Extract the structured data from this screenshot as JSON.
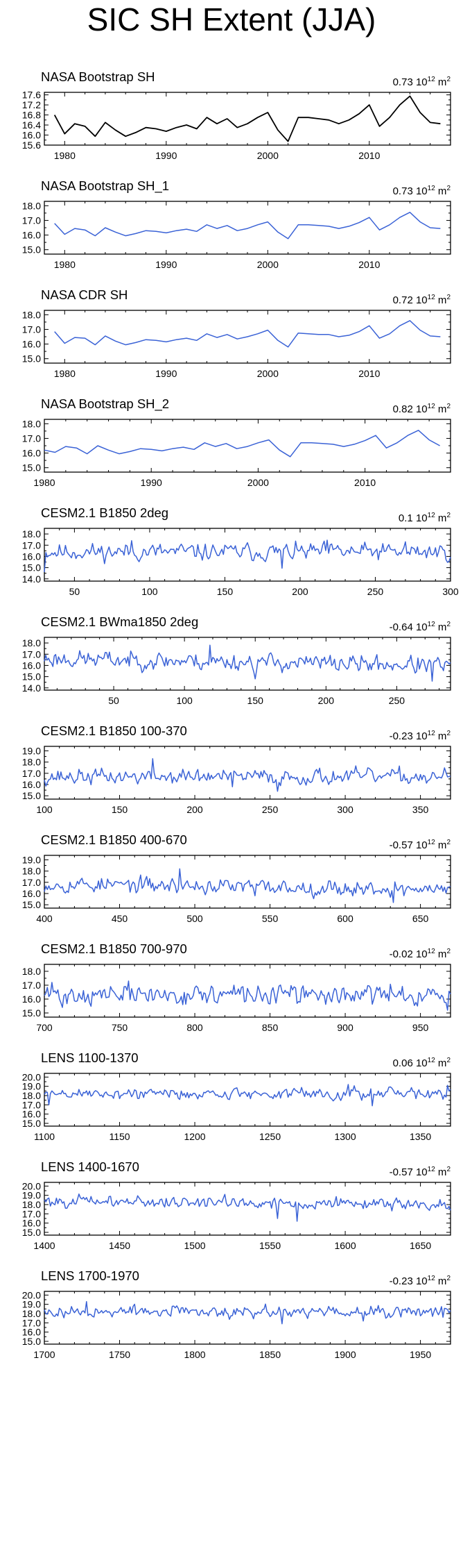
{
  "title": "SIC SH Extent (JJA)",
  "colors": {
    "black_series": "#000000",
    "blue_series": "#3a62d6"
  },
  "chart_data": [
    {
      "type": "line",
      "name": "NASA Bootstrap SH",
      "trend_label": "0.73 10",
      "trend_sup": "12",
      "trend_unit": " m",
      "trend_unit_sup": "2",
      "color": "#000000",
      "xlim": [
        1978,
        2018
      ],
      "ylim": [
        15.6,
        17.7
      ],
      "yticks": [
        15.6,
        16.0,
        16.4,
        16.8,
        17.2,
        17.6
      ],
      "ytick_labels": [
        "15.6",
        "16.0",
        "16.4",
        "16.8",
        "17.2",
        "17.6"
      ],
      "xticks": [
        1980,
        1990,
        2000,
        2010
      ],
      "xtick_labels": [
        "1980",
        "1990",
        "2000",
        "2010"
      ],
      "x": [
        1979,
        1980,
        1981,
        1982,
        1983,
        1984,
        1985,
        1986,
        1987,
        1988,
        1989,
        1990,
        1991,
        1992,
        1993,
        1994,
        1995,
        1996,
        1997,
        1998,
        1999,
        2000,
        2001,
        2002,
        2003,
        2004,
        2005,
        2006,
        2007,
        2008,
        2009,
        2010,
        2011,
        2012,
        2013,
        2014,
        2015,
        2016,
        2017
      ],
      "values": [
        16.8,
        16.05,
        16.45,
        16.35,
        15.95,
        16.5,
        16.2,
        15.95,
        16.1,
        16.3,
        16.25,
        16.15,
        16.3,
        16.4,
        16.25,
        16.7,
        16.45,
        16.65,
        16.3,
        16.45,
        16.7,
        16.9,
        16.2,
        15.75,
        16.7,
        16.7,
        16.65,
        16.6,
        16.45,
        16.6,
        16.85,
        17.2,
        16.35,
        16.7,
        17.2,
        17.55,
        16.9,
        16.5,
        16.45
      ]
    },
    {
      "type": "line",
      "name": "NASA Bootstrap SH_1",
      "trend_label": "0.73 10",
      "trend_sup": "12",
      "trend_unit": " m",
      "trend_unit_sup": "2",
      "color": "#3a62d6",
      "xlim": [
        1978,
        2018
      ],
      "ylim": [
        14.7,
        18.3
      ],
      "yticks": [
        15.0,
        16.0,
        17.0,
        18.0
      ],
      "ytick_labels": [
        "15.0",
        "16.0",
        "17.0",
        "18.0"
      ],
      "xticks": [
        1980,
        1990,
        2000,
        2010
      ],
      "xtick_labels": [
        "1980",
        "1990",
        "2000",
        "2010"
      ],
      "x": [
        1979,
        1980,
        1981,
        1982,
        1983,
        1984,
        1985,
        1986,
        1987,
        1988,
        1989,
        1990,
        1991,
        1992,
        1993,
        1994,
        1995,
        1996,
        1997,
        1998,
        1999,
        2000,
        2001,
        2002,
        2003,
        2004,
        2005,
        2006,
        2007,
        2008,
        2009,
        2010,
        2011,
        2012,
        2013,
        2014,
        2015,
        2016,
        2017
      ],
      "values": [
        16.8,
        16.05,
        16.45,
        16.35,
        15.95,
        16.5,
        16.2,
        15.95,
        16.1,
        16.3,
        16.25,
        16.15,
        16.3,
        16.4,
        16.25,
        16.7,
        16.45,
        16.65,
        16.3,
        16.45,
        16.7,
        16.9,
        16.2,
        15.75,
        16.7,
        16.7,
        16.65,
        16.6,
        16.45,
        16.6,
        16.85,
        17.2,
        16.35,
        16.7,
        17.2,
        17.55,
        16.9,
        16.5,
        16.45
      ]
    },
    {
      "type": "line",
      "name": "NASA CDR SH",
      "trend_label": "0.72 10",
      "trend_sup": "12",
      "trend_unit": " m",
      "trend_unit_sup": "2",
      "color": "#3a62d6",
      "xlim": [
        1978,
        2018
      ],
      "ylim": [
        14.7,
        18.3
      ],
      "yticks": [
        15.0,
        16.0,
        17.0,
        18.0
      ],
      "ytick_labels": [
        "15.0",
        "16.0",
        "17.0",
        "18.0"
      ],
      "xticks": [
        1980,
        1990,
        2000,
        2010
      ],
      "xtick_labels": [
        "1980",
        "1990",
        "2000",
        "2010"
      ],
      "x": [
        1979,
        1980,
        1981,
        1982,
        1983,
        1984,
        1985,
        1986,
        1987,
        1988,
        1989,
        1990,
        1991,
        1992,
        1993,
        1994,
        1995,
        1996,
        1997,
        1998,
        1999,
        2000,
        2001,
        2002,
        2003,
        2004,
        2005,
        2006,
        2007,
        2008,
        2009,
        2010,
        2011,
        2012,
        2013,
        2014,
        2015,
        2016,
        2017
      ],
      "values": [
        16.85,
        16.05,
        16.45,
        16.4,
        15.95,
        16.55,
        16.2,
        15.95,
        16.1,
        16.3,
        16.25,
        16.15,
        16.3,
        16.4,
        16.25,
        16.7,
        16.45,
        16.65,
        16.35,
        16.5,
        16.7,
        16.95,
        16.25,
        15.8,
        16.75,
        16.7,
        16.65,
        16.65,
        16.5,
        16.6,
        16.85,
        17.25,
        16.4,
        16.7,
        17.25,
        17.6,
        16.95,
        16.55,
        16.5
      ]
    },
    {
      "type": "line",
      "name": "NASA Bootstrap SH_2",
      "trend_label": "0.82 10",
      "trend_sup": "12",
      "trend_unit": " m",
      "trend_unit_sup": "2",
      "color": "#3a62d6",
      "xlim": [
        1980,
        2018
      ],
      "ylim": [
        14.7,
        18.3
      ],
      "yticks": [
        15.0,
        16.0,
        17.0,
        18.0
      ],
      "ytick_labels": [
        "15.0",
        "16.0",
        "17.0",
        "18.0"
      ],
      "xticks": [
        1980,
        1990,
        2000,
        2010
      ],
      "xtick_labels": [
        "1980",
        "1990",
        "2000",
        "2010"
      ],
      "x": [
        1980,
        1981,
        1982,
        1983,
        1984,
        1985,
        1986,
        1987,
        1988,
        1989,
        1990,
        1991,
        1992,
        1993,
        1994,
        1995,
        1996,
        1997,
        1998,
        1999,
        2000,
        2001,
        2002,
        2003,
        2004,
        2005,
        2006,
        2007,
        2008,
        2009,
        2010,
        2011,
        2012,
        2013,
        2014,
        2015,
        2016,
        2017
      ],
      "values": [
        16.2,
        16.05,
        16.45,
        16.35,
        15.95,
        16.5,
        16.2,
        15.95,
        16.1,
        16.3,
        16.25,
        16.15,
        16.3,
        16.4,
        16.25,
        16.7,
        16.45,
        16.65,
        16.3,
        16.45,
        16.7,
        16.9,
        16.2,
        15.75,
        16.7,
        16.7,
        16.65,
        16.6,
        16.45,
        16.6,
        16.85,
        17.2,
        16.35,
        16.7,
        17.2,
        17.55,
        16.9,
        16.5
      ]
    },
    {
      "type": "line",
      "name": "CESM2.1 B1850 2deg",
      "trend_label": "0.1 10",
      "trend_sup": "12",
      "trend_unit": " m",
      "trend_unit_sup": "2",
      "color": "#3a62d6",
      "xlim": [
        30,
        300
      ],
      "ylim": [
        13.8,
        18.5
      ],
      "yticks": [
        14.0,
        15.0,
        16.0,
        17.0,
        18.0
      ],
      "ytick_labels": [
        "14.0",
        "15.0",
        "16.0",
        "17.0",
        "18.0"
      ],
      "xticks": [
        50,
        100,
        150,
        200,
        250,
        300
      ],
      "xtick_labels": [
        "50",
        "100",
        "150",
        "200",
        "250",
        "300"
      ],
      "synthetic": {
        "start": 30,
        "end": 300,
        "mean": 16.4,
        "amp": 0.55,
        "seed": 11,
        "anchors": [
          [
            30,
            14.6
          ],
          [
            88,
            17.4
          ],
          [
            188,
            14.95
          ],
          [
            218,
            17.45
          ],
          [
            270,
            17.3
          ]
        ]
      }
    },
    {
      "type": "line",
      "name": "CESM2.1 BWma1850 2deg",
      "trend_label": "-0.64 10",
      "trend_sup": "12",
      "trend_unit": " m",
      "trend_unit_sup": "2",
      "color": "#3a62d6",
      "xlim": [
        1,
        288
      ],
      "ylim": [
        13.8,
        18.5
      ],
      "yticks": [
        14.0,
        15.0,
        16.0,
        17.0,
        18.0
      ],
      "ytick_labels": [
        "14.0",
        "15.0",
        "16.0",
        "17.0",
        "18.0"
      ],
      "xticks": [
        50,
        100,
        150,
        200,
        250
      ],
      "xtick_labels": [
        "50",
        "100",
        "150",
        "200",
        "250"
      ],
      "synthetic": {
        "start": 1,
        "end": 288,
        "mean": 16.3,
        "amp": 0.55,
        "seed": 23,
        "trend": -0.6,
        "anchors": [
          [
            118,
            17.8
          ],
          [
            150,
            14.8
          ],
          [
            275,
            14.6
          ]
        ]
      }
    },
    {
      "type": "line",
      "name": "CESM2.1 B1850 100-370",
      "trend_label": "-0.23 10",
      "trend_sup": "12",
      "trend_unit": " m",
      "trend_unit_sup": "2",
      "color": "#3a62d6",
      "xlim": [
        100,
        370
      ],
      "ylim": [
        14.7,
        19.4
      ],
      "yticks": [
        15.0,
        16.0,
        17.0,
        18.0,
        19.0
      ],
      "ytick_labels": [
        "15.0",
        "16.0",
        "17.0",
        "18.0",
        "19.0"
      ],
      "xticks": [
        100,
        150,
        200,
        250,
        300,
        350
      ],
      "xtick_labels": [
        "100",
        "150",
        "200",
        "250",
        "300",
        "350"
      ],
      "synthetic": {
        "start": 100,
        "end": 370,
        "mean": 16.7,
        "amp": 0.5,
        "seed": 37,
        "anchors": [
          [
            172,
            18.3
          ],
          [
            255,
            15.4
          ],
          [
            225,
            15.8
          ]
        ]
      }
    },
    {
      "type": "line",
      "name": "CESM2.1 B1850 400-670",
      "trend_label": "-0.57 10",
      "trend_sup": "12",
      "trend_unit": " m",
      "trend_unit_sup": "2",
      "color": "#3a62d6",
      "xlim": [
        400,
        670
      ],
      "ylim": [
        14.7,
        19.4
      ],
      "yticks": [
        15.0,
        16.0,
        17.0,
        18.0,
        19.0
      ],
      "ytick_labels": [
        "15.0",
        "16.0",
        "17.0",
        "18.0",
        "19.0"
      ],
      "xticks": [
        400,
        450,
        500,
        550,
        600,
        650
      ],
      "xtick_labels": [
        "400",
        "450",
        "500",
        "550",
        "600",
        "650"
      ],
      "synthetic": {
        "start": 400,
        "end": 670,
        "mean": 16.6,
        "amp": 0.5,
        "seed": 53,
        "trend": -0.5,
        "anchors": [
          [
            490,
            18.2
          ],
          [
            632,
            15.2
          ],
          [
            540,
            15.8
          ]
        ]
      }
    },
    {
      "type": "line",
      "name": "CESM2.1 B1850 700-970",
      "trend_label": "-0.02 10",
      "trend_sup": "12",
      "trend_unit": " m",
      "trend_unit_sup": "2",
      "color": "#3a62d6",
      "xlim": [
        700,
        970
      ],
      "ylim": [
        14.7,
        18.5
      ],
      "yticks": [
        15.0,
        16.0,
        17.0,
        18.0
      ],
      "ytick_labels": [
        "15.0",
        "16.0",
        "17.0",
        "18.0"
      ],
      "xticks": [
        700,
        750,
        800,
        850,
        900,
        950
      ],
      "xtick_labels": [
        "700",
        "750",
        "800",
        "850",
        "900",
        "950"
      ],
      "synthetic": {
        "start": 700,
        "end": 970,
        "mean": 16.3,
        "amp": 0.5,
        "seed": 71,
        "anchors": [
          [
            756,
            17.3
          ],
          [
            705,
            17.2
          ],
          [
            968,
            15.2
          ],
          [
            712,
            15.4
          ]
        ]
      }
    },
    {
      "type": "line",
      "name": "LENS 1100-1370",
      "trend_label": "0.06 10",
      "trend_sup": "12",
      "trend_unit": " m",
      "trend_unit_sup": "2",
      "color": "#3a62d6",
      "xlim": [
        1100,
        1370
      ],
      "ylim": [
        14.7,
        20.4
      ],
      "yticks": [
        15.0,
        16.0,
        17.0,
        18.0,
        19.0,
        20.0
      ],
      "ytick_labels": [
        "15.0",
        "16.0",
        "17.0",
        "18.0",
        "19.0",
        "20.0"
      ],
      "xticks": [
        1100,
        1150,
        1200,
        1250,
        1300,
        1350
      ],
      "xtick_labels": [
        "1100",
        "1150",
        "1200",
        "1250",
        "1300",
        "1350"
      ],
      "synthetic": {
        "start": 1100,
        "end": 1370,
        "mean": 18.2,
        "amp": 0.45,
        "seed": 89,
        "anchors": [
          [
            1103,
            17.0
          ],
          [
            1318,
            16.9
          ],
          [
            1368,
            19.1
          ],
          [
            1302,
            19.2
          ]
        ]
      }
    },
    {
      "type": "line",
      "name": "LENS 1400-1670",
      "trend_label": "-0.57 10",
      "trend_sup": "12",
      "trend_unit": " m",
      "trend_unit_sup": "2",
      "color": "#3a62d6",
      "xlim": [
        1400,
        1670
      ],
      "ylim": [
        14.7,
        20.4
      ],
      "yticks": [
        15.0,
        16.0,
        17.0,
        18.0,
        19.0,
        20.0
      ],
      "ytick_labels": [
        "15.0",
        "16.0",
        "17.0",
        "18.0",
        "19.0",
        "20.0"
      ],
      "xticks": [
        1400,
        1450,
        1500,
        1550,
        1600,
        1650
      ],
      "xtick_labels": [
        "1400",
        "1450",
        "1500",
        "1550",
        "1600",
        "1650"
      ],
      "synthetic": {
        "start": 1400,
        "end": 1670,
        "mean": 18.2,
        "amp": 0.45,
        "seed": 101,
        "trend": -0.4,
        "anchors": [
          [
            1520,
            19.1
          ],
          [
            1568,
            16.2
          ],
          [
            1555,
            16.5
          ]
        ]
      }
    },
    {
      "type": "line",
      "name": "LENS 1700-1970",
      "trend_label": "-0.23 10",
      "trend_sup": "12",
      "trend_unit": " m",
      "trend_unit_sup": "2",
      "color": "#3a62d6",
      "xlim": [
        1700,
        1970
      ],
      "ylim": [
        14.7,
        20.4
      ],
      "yticks": [
        15.0,
        16.0,
        17.0,
        18.0,
        19.0,
        20.0
      ],
      "ytick_labels": [
        "15.0",
        "16.0",
        "17.0",
        "18.0",
        "19.0",
        "20.0"
      ],
      "xticks": [
        1700,
        1750,
        1800,
        1850,
        1900,
        1950
      ],
      "xtick_labels": [
        "1700",
        "1750",
        "1800",
        "1850",
        "1900",
        "1950"
      ],
      "synthetic": {
        "start": 1700,
        "end": 1970,
        "mean": 18.2,
        "amp": 0.45,
        "seed": 127,
        "anchors": [
          [
            1728,
            19.3
          ],
          [
            1858,
            16.9
          ],
          [
            1912,
            17.2
          ],
          [
            1965,
            17.6
          ]
        ]
      }
    }
  ]
}
